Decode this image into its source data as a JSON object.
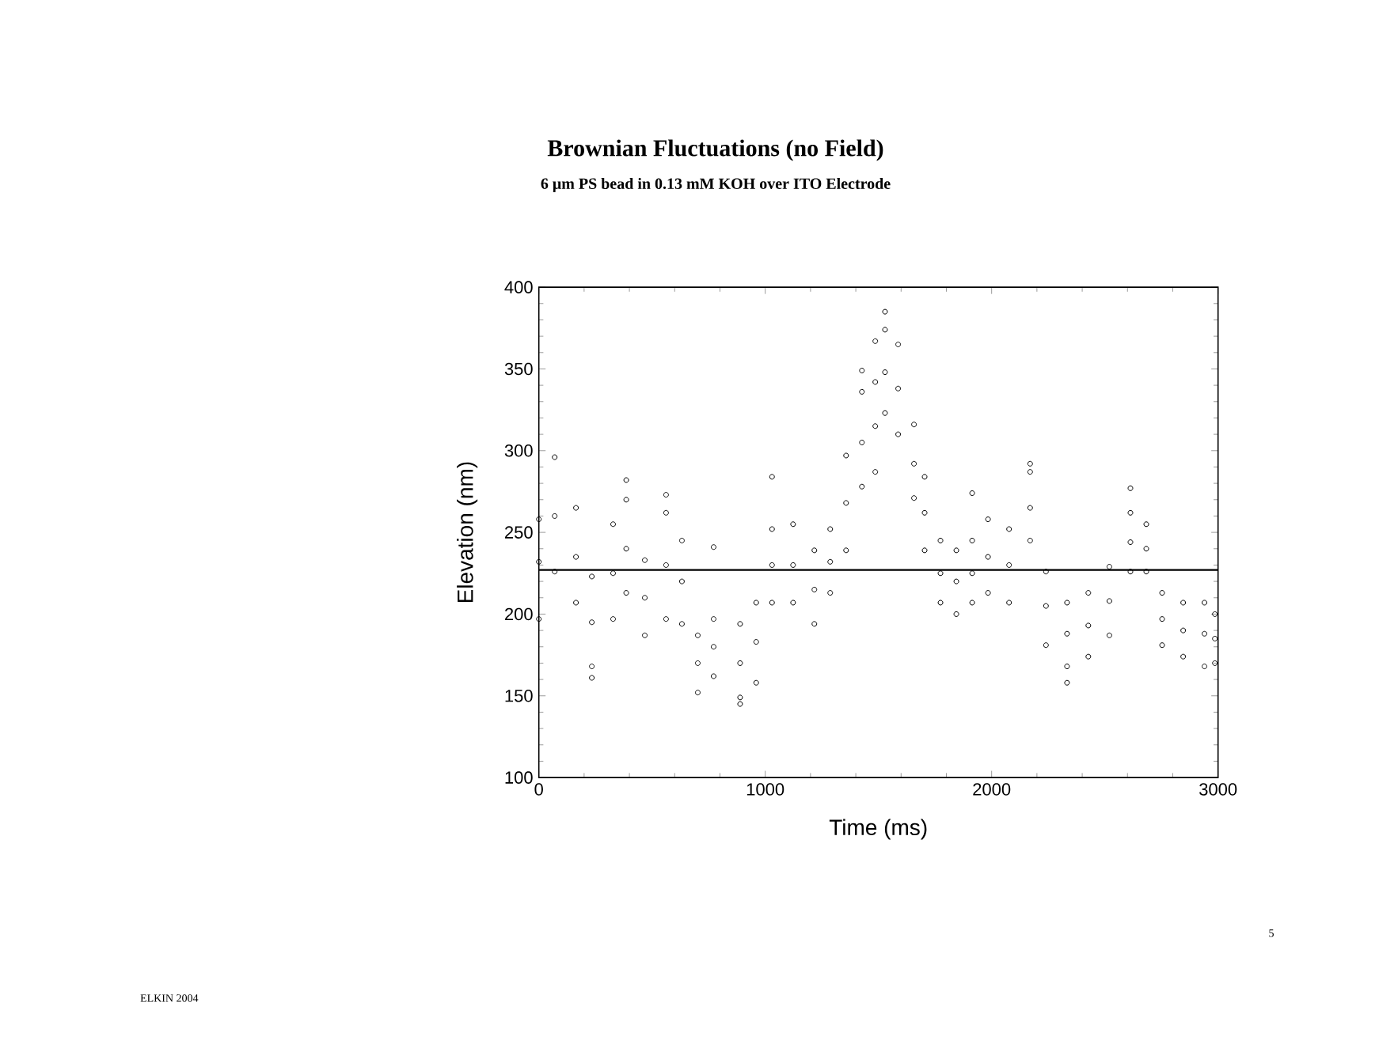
{
  "chart_data": {
    "type": "scatter",
    "title": "Brownian Fluctuations (no Field)",
    "subtitle": "6 μm PS bead in 0.13 mM KOH over ITO Electrode",
    "xlabel": "Time (ms)",
    "ylabel": "Elevation (nm)",
    "xlim": [
      0,
      3000
    ],
    "xticks": [
      0,
      1000,
      2000,
      3000
    ],
    "ylim": [
      100,
      400
    ],
    "yticks": [
      100,
      150,
      200,
      250,
      300,
      350,
      400
    ],
    "marker": "circle",
    "series": [
      {
        "color": "#000000",
        "x": [
          0,
          0,
          0,
          70,
          70,
          70,
          164,
          164,
          164,
          234,
          234,
          234,
          234,
          328,
          328,
          328,
          386,
          386,
          386,
          386,
          468,
          468,
          468,
          562,
          562,
          562,
          562,
          632,
          632,
          632,
          702,
          702,
          702,
          772,
          772,
          772,
          772,
          889,
          889,
          889,
          889,
          960,
          960,
          960,
          1030,
          1030,
          1030,
          1030,
          1123,
          1123,
          1123,
          1217,
          1217,
          1217,
          1287,
          1287,
          1287,
          1357,
          1357,
          1357,
          1427,
          1427,
          1427,
          1427,
          1486,
          1486,
          1486,
          1486,
          1529,
          1529,
          1529,
          1529,
          1587,
          1587,
          1587,
          1657,
          1657,
          1657,
          1704,
          1704,
          1704,
          1774,
          1774,
          1774,
          1844,
          1844,
          1844,
          1914,
          1914,
          1914,
          1914,
          1984,
          1984,
          1984,
          2077,
          2077,
          2077,
          2170,
          2170,
          2170,
          2170,
          2240,
          2240,
          2240,
          2333,
          2333,
          2333,
          2333,
          2427,
          2427,
          2427,
          2520,
          2520,
          2520,
          2613,
          2613,
          2613,
          2613,
          2683,
          2683,
          2683,
          2753,
          2753,
          2753,
          2846,
          2846,
          2846,
          2940,
          2940,
          2940,
          2986,
          2986,
          2986
        ],
        "values": [
          258,
          232,
          197,
          296,
          260,
          226,
          265,
          235,
          207,
          223,
          195,
          168,
          161,
          255,
          225,
          197,
          282,
          270,
          240,
          213,
          233,
          210,
          187,
          273,
          262,
          230,
          197,
          245,
          220,
          194,
          187,
          170,
          152,
          241,
          197,
          180,
          162,
          194,
          170,
          149,
          145,
          207,
          183,
          158,
          284,
          252,
          230,
          207,
          255,
          230,
          207,
          239,
          215,
          194,
          252,
          232,
          213,
          297,
          268,
          239,
          349,
          336,
          305,
          278,
          367,
          342,
          315,
          287,
          385,
          374,
          348,
          323,
          365,
          338,
          310,
          316,
          292,
          271,
          284,
          262,
          239,
          245,
          225,
          207,
          239,
          220,
          200,
          274,
          245,
          225,
          207,
          258,
          235,
          213,
          252,
          230,
          207,
          292,
          287,
          265,
          245,
          226,
          205,
          181,
          207,
          188,
          168,
          158,
          213,
          193,
          174,
          229,
          208,
          187,
          277,
          262,
          244,
          226,
          255,
          240,
          226,
          213,
          197,
          181,
          207,
          190,
          174,
          207,
          188,
          168,
          200,
          185,
          170
        ]
      }
    ],
    "ref_lines": [
      {
        "axis": "y",
        "value": 227,
        "color": "#000000"
      }
    ],
    "annotations": [
      "ELKIN 2004",
      "5"
    ]
  }
}
